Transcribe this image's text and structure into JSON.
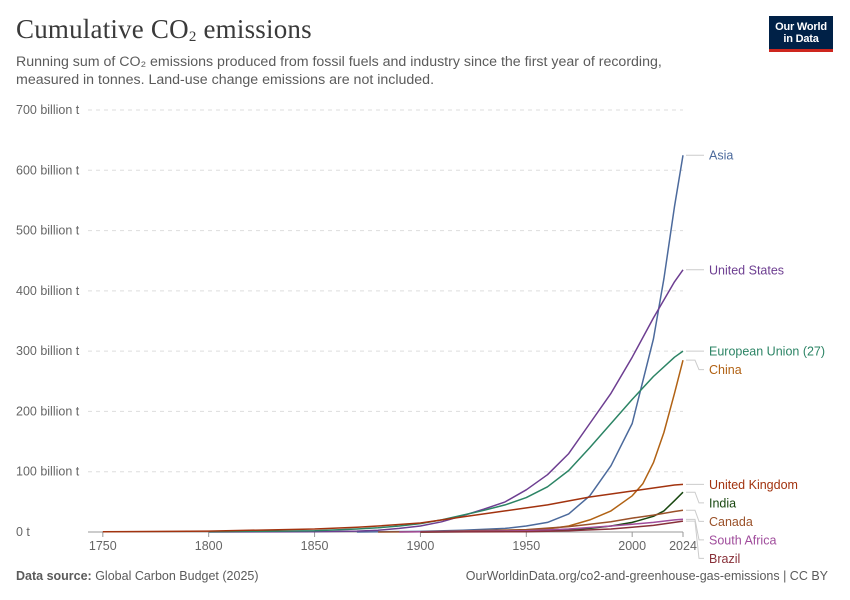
{
  "header": {
    "title_main": "Cumulative CO",
    "title_sub": "2",
    "title_end": " emissions",
    "subtitle": "Running sum of CO₂ emissions produced from fossil fuels and industry since the first year of recording, measured in tonnes. Land-use change emissions are not included.",
    "logo_line1": "Our World",
    "logo_line2": "in Data"
  },
  "footer": {
    "source_label": "Data source:",
    "source_value": " Global Carbon Budget (2025)",
    "url": "OurWorldinData.org/co2-and-greenhouse-gas-emissions | CC BY"
  },
  "chart_data": {
    "type": "line",
    "title": "Cumulative CO₂ emissions",
    "xlim": [
      1743,
      2024
    ],
    "ylim": [
      0,
      700
    ],
    "y_unit": "billion t",
    "x_ticks": [
      1750,
      1800,
      1850,
      1900,
      1950,
      2000,
      2024
    ],
    "x_tick_labels": [
      "1750",
      "1800",
      "1850",
      "1900",
      "1950",
      "2000",
      "2024"
    ],
    "y_ticks": [
      0,
      100,
      200,
      300,
      400,
      500,
      600,
      700
    ],
    "y_tick_labels": [
      "0 t",
      "100 billion t",
      "200 billion t",
      "300 billion t",
      "400 billion t",
      "500 billion t",
      "600 billion t",
      "700 billion t"
    ],
    "grid": "horizontal dashed",
    "legend": "right end labels",
    "series": [
      {
        "name": "Asia",
        "color": "#4c6a9c",
        "x": [
          1870,
          1900,
          1920,
          1940,
          1950,
          1960,
          1970,
          1980,
          1990,
          2000,
          2010,
          2015,
          2020,
          2024
        ],
        "y": [
          0,
          1,
          3,
          6,
          10,
          16,
          30,
          60,
          110,
          180,
          320,
          420,
          540,
          625
        ]
      },
      {
        "name": "United States",
        "color": "#6d3e91",
        "x": [
          1800,
          1850,
          1870,
          1880,
          1890,
          1900,
          1910,
          1920,
          1930,
          1940,
          1950,
          1960,
          1970,
          1980,
          1990,
          2000,
          2010,
          2020,
          2024
        ],
        "y": [
          0,
          0.5,
          1.5,
          3,
          6,
          10,
          17,
          27,
          38,
          50,
          70,
          95,
          130,
          180,
          230,
          290,
          355,
          415,
          435
        ]
      },
      {
        "name": "European Union (27)",
        "color": "#2c8465",
        "x": [
          1800,
          1850,
          1870,
          1880,
          1890,
          1900,
          1910,
          1920,
          1930,
          1940,
          1950,
          1960,
          1970,
          1980,
          1990,
          2000,
          2010,
          2020,
          2024
        ],
        "y": [
          0.5,
          2,
          5,
          7,
          10,
          14,
          20,
          28,
          36,
          45,
          57,
          75,
          102,
          140,
          180,
          220,
          258,
          290,
          300
        ]
      },
      {
        "name": "China",
        "color": "#b16214",
        "x": [
          1900,
          1950,
          1960,
          1970,
          1980,
          1990,
          2000,
          2005,
          2010,
          2015,
          2020,
          2024
        ],
        "y": [
          0,
          2,
          5,
          10,
          20,
          35,
          60,
          80,
          115,
          165,
          230,
          285
        ]
      },
      {
        "name": "United Kingdom",
        "color": "#a2330f",
        "x": [
          1750,
          1800,
          1850,
          1870,
          1880,
          1900,
          1920,
          1940,
          1960,
          1980,
          2000,
          2010,
          2020,
          2024
        ],
        "y": [
          0.3,
          1.5,
          5,
          8,
          10,
          15,
          25,
          35,
          45,
          58,
          68,
          73,
          78,
          79
        ]
      },
      {
        "name": "India",
        "color": "#18470f",
        "x": [
          1900,
          1950,
          1970,
          1980,
          1990,
          2000,
          2010,
          2015,
          2020,
          2024
        ],
        "y": [
          0,
          1,
          4,
          6,
          10,
          16,
          26,
          35,
          52,
          66
        ]
      },
      {
        "name": "Canada",
        "color": "#9a5129",
        "x": [
          1880,
          1900,
          1950,
          1970,
          1980,
          1990,
          2000,
          2010,
          2020,
          2024
        ],
        "y": [
          0,
          0.5,
          4,
          9,
          13,
          17,
          23,
          28,
          34,
          36
        ]
      },
      {
        "name": "South Africa",
        "color": "#a04d9c",
        "x": [
          1890,
          1950,
          1970,
          1990,
          2000,
          2010,
          2020,
          2024
        ],
        "y": [
          0,
          2,
          5,
          10,
          13,
          16,
          20,
          21
        ]
      },
      {
        "name": "Brazil",
        "color": "#883039",
        "x": [
          1900,
          1950,
          1970,
          1990,
          2000,
          2010,
          2020,
          2024
        ],
        "y": [
          0,
          0.5,
          2,
          5,
          8,
          11,
          16,
          18
        ]
      }
    ]
  }
}
